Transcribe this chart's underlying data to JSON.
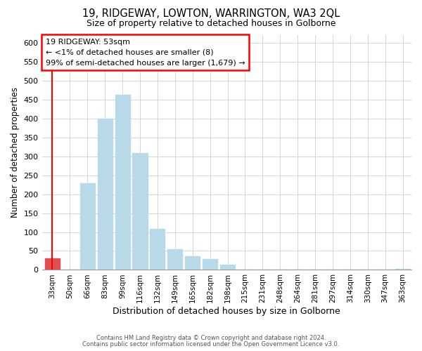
{
  "title": "19, RIDGEWAY, LOWTON, WARRINGTON, WA3 2QL",
  "subtitle": "Size of property relative to detached houses in Golborne",
  "xlabel": "Distribution of detached houses by size in Golborne",
  "ylabel": "Number of detached properties",
  "bar_labels": [
    "33sqm",
    "50sqm",
    "66sqm",
    "83sqm",
    "99sqm",
    "116sqm",
    "132sqm",
    "149sqm",
    "165sqm",
    "182sqm",
    "198sqm",
    "215sqm",
    "231sqm",
    "248sqm",
    "264sqm",
    "281sqm",
    "297sqm",
    "314sqm",
    "330sqm",
    "347sqm",
    "363sqm"
  ],
  "bar_values": [
    30,
    0,
    228,
    400,
    462,
    308,
    108,
    54,
    36,
    29,
    13,
    0,
    0,
    0,
    0,
    0,
    0,
    0,
    0,
    0,
    2
  ],
  "bar_color": "#b8d9e8",
  "highlight_bar_index": 0,
  "highlight_bar_color": "#e05050",
  "ylim": [
    0,
    620
  ],
  "yticks": [
    0,
    50,
    100,
    150,
    200,
    250,
    300,
    350,
    400,
    450,
    500,
    550,
    600
  ],
  "annotation_title": "19 RIDGEWAY: 53sqm",
  "annotation_line1": "← <1% of detached houses are smaller (8)",
  "annotation_line2": "99% of semi-detached houses are larger (1,679) →",
  "footer1": "Contains HM Land Registry data © Crown copyright and database right 2024.",
  "footer2": "Contains public sector information licensed under the Open Government Licence v3.0."
}
